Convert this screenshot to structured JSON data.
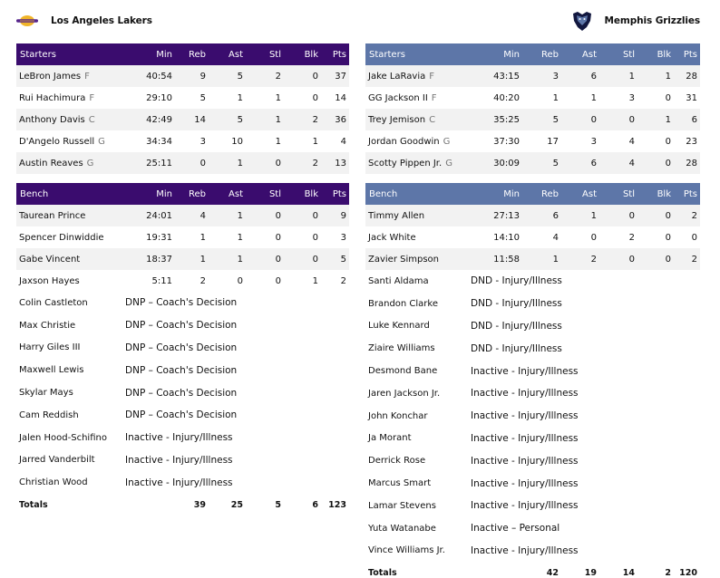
{
  "home": {
    "name": "Los Angeles Lakers",
    "logo_icon": "lakers-logo",
    "colors": {
      "header": "#3a0c6e",
      "logo_gold": "#f0b429",
      "logo_purple": "#55248c"
    },
    "starters": {
      "header": [
        "Starters",
        "Min",
        "Reb",
        "Ast",
        "Stl",
        "Blk",
        "Pts"
      ],
      "rows": [
        {
          "name": "LeBron James",
          "pos": "F",
          "min": "40:54",
          "reb": "9",
          "ast": "5",
          "stl": "2",
          "blk": "0",
          "pts": "37"
        },
        {
          "name": "Rui Hachimura",
          "pos": "F",
          "min": "29:10",
          "reb": "5",
          "ast": "1",
          "stl": "1",
          "blk": "0",
          "pts": "14"
        },
        {
          "name": "Anthony Davis",
          "pos": "C",
          "min": "42:49",
          "reb": "14",
          "ast": "5",
          "stl": "1",
          "blk": "2",
          "pts": "36"
        },
        {
          "name": "D'Angelo Russell",
          "pos": "G",
          "min": "34:34",
          "reb": "3",
          "ast": "10",
          "stl": "1",
          "blk": "1",
          "pts": "4"
        },
        {
          "name": "Austin Reaves",
          "pos": "G",
          "min": "25:11",
          "reb": "0",
          "ast": "1",
          "stl": "0",
          "blk": "2",
          "pts": "13"
        }
      ]
    },
    "bench": {
      "header": [
        "Bench",
        "Min",
        "Reb",
        "Ast",
        "Stl",
        "Blk",
        "Pts"
      ],
      "rows": [
        {
          "name": "Taurean Prince",
          "min": "24:01",
          "reb": "4",
          "ast": "1",
          "stl": "0",
          "blk": "0",
          "pts": "9"
        },
        {
          "name": "Spencer Dinwiddie",
          "min": "19:31",
          "reb": "1",
          "ast": "1",
          "stl": "0",
          "blk": "0",
          "pts": "3"
        },
        {
          "name": "Gabe Vincent",
          "min": "18:37",
          "reb": "1",
          "ast": "1",
          "stl": "0",
          "blk": "0",
          "pts": "5"
        },
        {
          "name": "Jaxson Hayes",
          "min": "5:11",
          "reb": "2",
          "ast": "0",
          "stl": "0",
          "blk": "1",
          "pts": "2"
        }
      ],
      "dnp": [
        {
          "name": "Colin Castleton",
          "status": "DNP – Coach's Decision"
        },
        {
          "name": "Max Christie",
          "status": "DNP – Coach's Decision"
        },
        {
          "name": "Harry Giles III",
          "status": "DNP – Coach's Decision"
        },
        {
          "name": "Maxwell Lewis",
          "status": "DNP – Coach's Decision"
        },
        {
          "name": "Skylar Mays",
          "status": "DNP – Coach's Decision"
        },
        {
          "name": "Cam Reddish",
          "status": "DNP – Coach's Decision"
        },
        {
          "name": "Jalen Hood-Schifino",
          "status": "Inactive - Injury/Illness"
        },
        {
          "name": "Jarred Vanderbilt",
          "status": "Inactive - Injury/Illness"
        },
        {
          "name": "Christian Wood",
          "status": "Inactive - Injury/Illness"
        }
      ]
    },
    "totals": {
      "label": "Totals",
      "reb": "39",
      "ast": "25",
      "stl": "5",
      "blk": "6",
      "pts": "123"
    }
  },
  "away": {
    "name": "Memphis Grizzlies",
    "logo_icon": "grizzlies-logo",
    "colors": {
      "header": "#5d76a8",
      "logo_navy": "#12173f",
      "logo_blue": "#5d76a8"
    },
    "starters": {
      "header": [
        "Starters",
        "Min",
        "Reb",
        "Ast",
        "Stl",
        "Blk",
        "Pts"
      ],
      "rows": [
        {
          "name": "Jake LaRavia",
          "pos": "F",
          "min": "43:15",
          "reb": "3",
          "ast": "6",
          "stl": "1",
          "blk": "1",
          "pts": "28"
        },
        {
          "name": "GG Jackson II",
          "pos": "F",
          "min": "40:20",
          "reb": "1",
          "ast": "1",
          "stl": "3",
          "blk": "0",
          "pts": "31"
        },
        {
          "name": "Trey Jemison",
          "pos": "C",
          "min": "35:25",
          "reb": "5",
          "ast": "0",
          "stl": "0",
          "blk": "1",
          "pts": "6"
        },
        {
          "name": "Jordan Goodwin",
          "pos": "G",
          "min": "37:30",
          "reb": "17",
          "ast": "3",
          "stl": "4",
          "blk": "0",
          "pts": "23"
        },
        {
          "name": "Scotty Pippen Jr.",
          "pos": "G",
          "min": "30:09",
          "reb": "5",
          "ast": "6",
          "stl": "4",
          "blk": "0",
          "pts": "28"
        }
      ]
    },
    "bench": {
      "header": [
        "Bench",
        "Min",
        "Reb",
        "Ast",
        "Stl",
        "Blk",
        "Pts"
      ],
      "rows": [
        {
          "name": "Timmy Allen",
          "min": "27:13",
          "reb": "6",
          "ast": "1",
          "stl": "0",
          "blk": "0",
          "pts": "2"
        },
        {
          "name": "Jack White",
          "min": "14:10",
          "reb": "4",
          "ast": "0",
          "stl": "2",
          "blk": "0",
          "pts": "0"
        },
        {
          "name": "Zavier Simpson",
          "min": "11:58",
          "reb": "1",
          "ast": "2",
          "stl": "0",
          "blk": "0",
          "pts": "2"
        }
      ],
      "dnp": [
        {
          "name": "Santi Aldama",
          "status": "DND - Injury/Illness"
        },
        {
          "name": "Brandon Clarke",
          "status": "DND - Injury/Illness"
        },
        {
          "name": "Luke Kennard",
          "status": "DND - Injury/Illness"
        },
        {
          "name": "Ziaire Williams",
          "status": "DND - Injury/Illness"
        },
        {
          "name": "Desmond Bane",
          "status": "Inactive - Injury/Illness"
        },
        {
          "name": "Jaren Jackson Jr.",
          "status": "Inactive - Injury/Illness"
        },
        {
          "name": "John Konchar",
          "status": "Inactive - Injury/Illness"
        },
        {
          "name": "Ja Morant",
          "status": "Inactive - Injury/Illness"
        },
        {
          "name": "Derrick Rose",
          "status": "Inactive - Injury/Illness"
        },
        {
          "name": "Marcus Smart",
          "status": "Inactive - Injury/Illness"
        },
        {
          "name": "Lamar Stevens",
          "status": "Inactive - Injury/Illness"
        },
        {
          "name": "Yuta Watanabe",
          "status": "Inactive – Personal"
        },
        {
          "name": "Vince Williams Jr.",
          "status": "Inactive - Injury/Illness"
        }
      ]
    },
    "totals": {
      "label": "Totals",
      "reb": "42",
      "ast": "19",
      "stl": "14",
      "blk": "2",
      "pts": "120"
    }
  }
}
